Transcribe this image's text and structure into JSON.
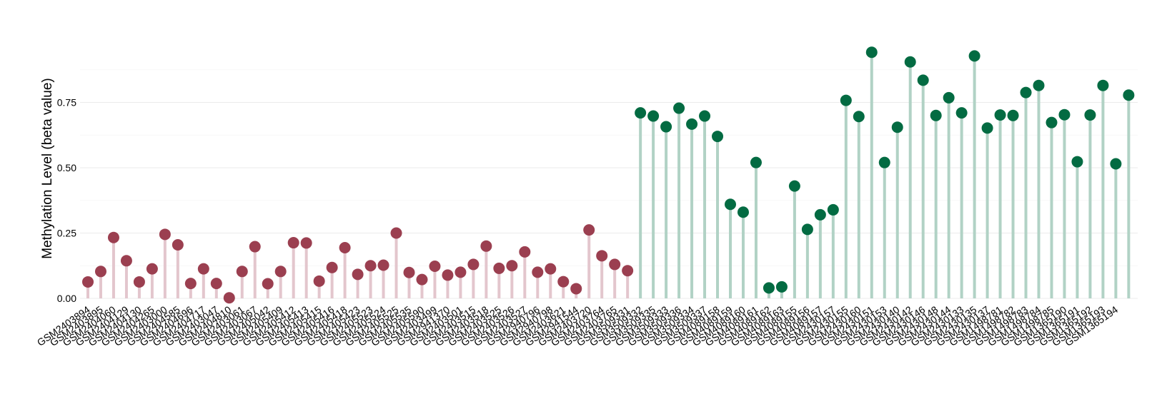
{
  "chart_data": {
    "type": "lollipop",
    "ylabel": "Methylation Level (beta value)",
    "ylim": [
      -0.02,
      0.96
    ],
    "y_ticks": [
      0.0,
      0.25,
      0.5,
      0.75
    ],
    "y_tick_labels": [
      "0.00",
      "0.25",
      "0.50",
      "0.75"
    ],
    "grid": true,
    "groups": [
      {
        "color": "#9b3f50",
        "stem_color": "#e3c6cd",
        "samples": [
          [
            "GSM2403894",
            0.063
          ],
          [
            "GSM2403895",
            0.103
          ],
          [
            "GSM2404060",
            0.233
          ],
          [
            "GSM2404129",
            0.144
          ],
          [
            "GSM2404130",
            0.063
          ],
          [
            "GSM2404265",
            0.113
          ],
          [
            "GSM2403000",
            0.245
          ],
          [
            "GSM2404585",
            0.205
          ],
          [
            "GSM2404696",
            0.057
          ],
          [
            "GSM2404717",
            0.113
          ],
          [
            "GSM2403047",
            0.057
          ],
          [
            "GSM2404810",
            0.002
          ],
          [
            "GSM2403061",
            0.103
          ],
          [
            "GSM2403067",
            0.198
          ],
          [
            "GSM2405042",
            0.056
          ],
          [
            "GSM2405409",
            0.103
          ],
          [
            "GSM2405412",
            0.213
          ],
          [
            "GSM2405413",
            0.212
          ],
          [
            "GSM2405415",
            0.066
          ],
          [
            "GSM2405416",
            0.118
          ],
          [
            "GSM2405418",
            0.194
          ],
          [
            "GSM2405423",
            0.092
          ],
          [
            "GSM2405523",
            0.125
          ],
          [
            "GSM2405524",
            0.127
          ],
          [
            "GSM2405525",
            0.25
          ],
          [
            "GSM2405535",
            0.099
          ],
          [
            "GSM2405590",
            0.072
          ],
          [
            "GSM2403499",
            0.123
          ],
          [
            "GSM2941370",
            0.089
          ],
          [
            "GSM2403501",
            0.1
          ],
          [
            "GSM2403515",
            0.13
          ],
          [
            "GSM2403518",
            0.2
          ],
          [
            "GSM2403525",
            0.115
          ],
          [
            "GSM2403526",
            0.125
          ],
          [
            "GSM2403527",
            0.178
          ],
          [
            "GSM2940796",
            0.1
          ],
          [
            "GSM2940798",
            0.113
          ],
          [
            "GSM2403621",
            0.064
          ],
          [
            "GSM2941544",
            0.037
          ],
          [
            "GSM2403720",
            0.262
          ],
          [
            "GSM2403764",
            0.163
          ],
          [
            "GSM2403765",
            0.13
          ],
          [
            "GSM3509331",
            0.106
          ]
        ]
      },
      {
        "color": "#036b42",
        "stem_color": "#b1d2c5",
        "samples": [
          [
            "GSM3509332",
            0.71
          ],
          [
            "GSM3509335",
            0.698
          ],
          [
            "GSM3509333",
            0.657
          ],
          [
            "GSM3509336",
            0.728
          ],
          [
            "GSM3509334",
            0.667
          ],
          [
            "GSM3509337",
            0.698
          ],
          [
            "GSM4089158",
            0.62
          ],
          [
            "GSM4089159",
            0.36
          ],
          [
            "GSM4089160",
            0.33
          ],
          [
            "GSM4089161",
            0.52
          ],
          [
            "GSM4089162",
            0.04
          ],
          [
            "GSM4089163",
            0.044
          ],
          [
            "GSM4089155",
            0.43
          ],
          [
            "GSM4089156",
            0.264
          ],
          [
            "GSM4089157",
            0.32
          ],
          [
            "GSM2430157",
            0.339
          ],
          [
            "GSM2430155",
            0.758
          ],
          [
            "GSM2430160",
            0.696
          ],
          [
            "GSM2430151",
            0.942
          ],
          [
            "GSM2430153",
            0.52
          ],
          [
            "GSM2430140",
            0.655
          ],
          [
            "GSM2430142",
            0.905
          ],
          [
            "GSM2430146",
            0.835
          ],
          [
            "GSM2430148",
            0.7
          ],
          [
            "GSM2430144",
            0.768
          ],
          [
            "GSM2430133",
            0.71
          ],
          [
            "GSM2430135",
            0.928
          ],
          [
            "GSM2430137",
            0.652
          ],
          [
            "GSM1498781",
            0.702
          ],
          [
            "GSM1498782",
            0.7
          ],
          [
            "GSM1498783",
            0.788
          ],
          [
            "GSM1498784",
            0.815
          ],
          [
            "GSM1498785",
            0.673
          ],
          [
            "GSM1365190",
            0.703
          ],
          [
            "GSM1365191",
            0.523
          ],
          [
            "GSM1365192",
            0.702
          ],
          [
            "GSM1365193",
            0.815
          ],
          [
            "GSM1365194",
            0.515
          ],
          [
            "",
            0.778
          ]
        ]
      }
    ]
  }
}
